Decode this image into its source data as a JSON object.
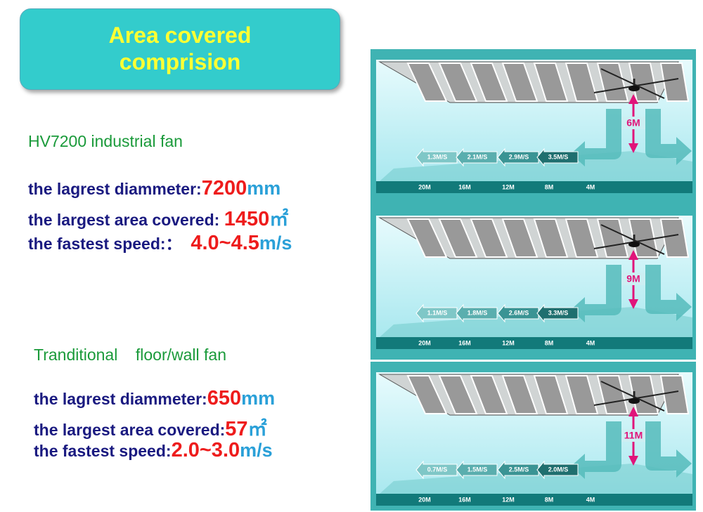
{
  "title": [
    "Area covered",
    "comprision"
  ],
  "sections": [
    {
      "heading": "HV7200 industrial fan",
      "lines": [
        {
          "label": "the lagrest diammeter:",
          "value": "7200",
          "unit": "mm"
        },
        {
          "label": "the largest area covered: ",
          "value": "1450",
          "unit": "㎡"
        },
        {
          "label": "the fastest speed:：  ",
          "value": "4.0~4.5",
          "unit": "m/s"
        }
      ]
    },
    {
      "heading": "Tranditional    floor/wall fan",
      "lines": [
        {
          "label": "the lagrest diammeter:",
          "value": "650",
          "unit": "mm"
        },
        {
          "label": "the largest area covered:",
          "value": "57",
          "unit": "㎡"
        },
        {
          "label": "the fastest speed:",
          "value": "2.0~3.0",
          "unit": "m/s"
        }
      ]
    }
  ],
  "panels": [
    {
      "height": "6M",
      "speeds": [
        "1.3M/S",
        "2.1M/S",
        "2.9M/S",
        "3.5M/S"
      ],
      "distances": [
        "20M",
        "16M",
        "12M",
        "8M",
        "4M"
      ]
    },
    {
      "height": "9M",
      "speeds": [
        "1.1M/S",
        "1.8M/S",
        "2.6M/S",
        "3.3M/S"
      ],
      "distances": [
        "20M",
        "16M",
        "12M",
        "8M",
        "4M"
      ]
    },
    {
      "height": "11M",
      "speeds": [
        "0.7M/S",
        "1.5M/S",
        "2.5M/S",
        "2.0M/S"
      ],
      "distances": [
        "20M",
        "16M",
        "12M",
        "8M",
        "4M"
      ]
    }
  ]
}
